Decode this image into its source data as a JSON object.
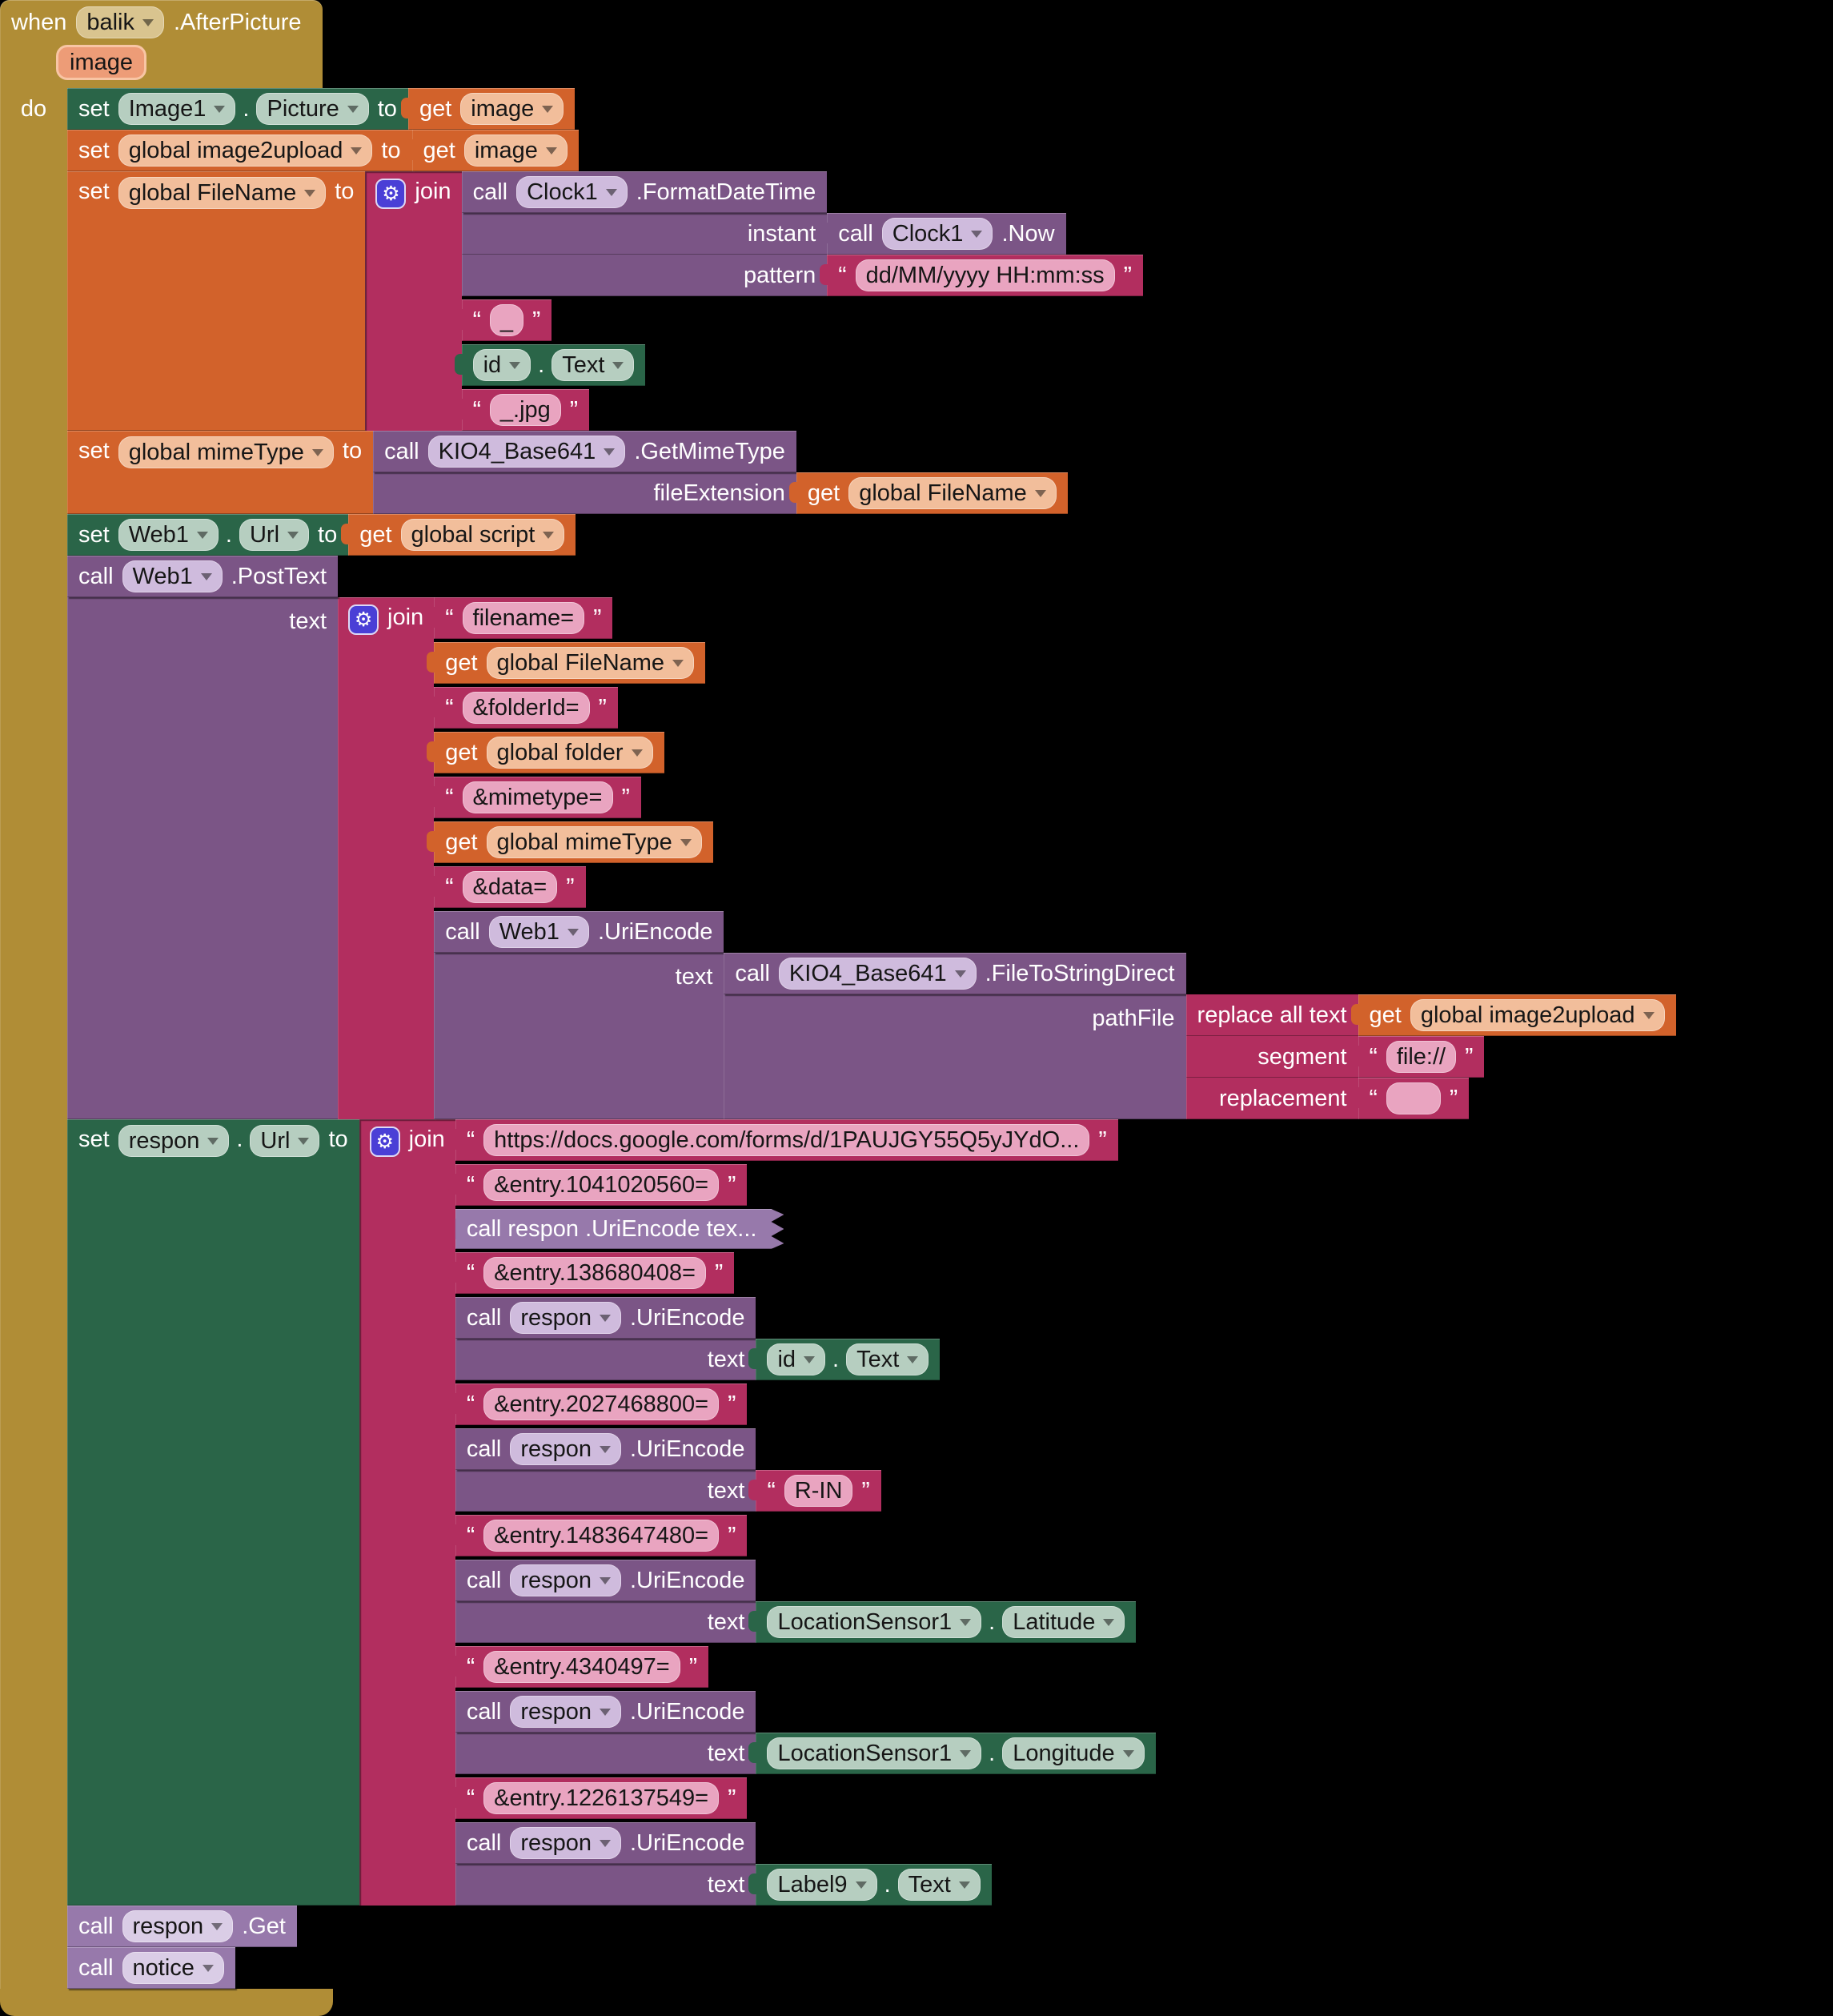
{
  "labels": {
    "when": "when",
    "do": "do",
    "set": "set",
    "get": "get",
    "call": "call",
    "to": "to",
    "join": "join",
    "dot": "."
  },
  "quotes": {
    "open": "“",
    "close": "”"
  },
  "event": {
    "component": "balik",
    "event_name": ".AfterPicture",
    "param": "image"
  },
  "vars": {
    "image": "image",
    "image2upload": "global image2upload",
    "file_name": "global FileName",
    "mime_type": "global mimeType",
    "script": "global script",
    "folder": "global folder"
  },
  "components": {
    "image1": "Image1",
    "picture_prop": "Picture",
    "clock1": "Clock1",
    "kio4": "KIO4_Base641",
    "web1": "Web1",
    "respon": "respon",
    "id": "id",
    "text_prop": "Text",
    "location_sensor1": "LocationSensor1",
    "latitude_prop": "Latitude",
    "longitude_prop": "Longitude",
    "label9": "Label9",
    "url_prop": "Url",
    "notice": "notice"
  },
  "methods": {
    "format_date_time": ".FormatDateTime",
    "now": ".Now",
    "get_mime_type": ".GetMimeType",
    "post_text": ".PostText",
    "uri_encode": ".UriEncode",
    "file_to_string_direct": ".FileToStringDirect",
    "get_method": ".Get"
  },
  "args": {
    "instant": "instant",
    "pattern": "pattern",
    "file_extension": "fileExtension",
    "text": "text",
    "path_file": "pathFile",
    "replace_all_text": "replace all text",
    "segment": "segment",
    "replacement": "replacement"
  },
  "strings": {
    "pattern": "dd/MM/yyyy HH:mm:ss",
    "underscore": "_",
    "jpg_suffix": "_.jpg",
    "filename_param": "filename=",
    "folder_id_param": "&folderId=",
    "mimetype_param": "&mimetype=",
    "data_param": "&data=",
    "file_scheme": "file://",
    "replacement_empty": "",
    "form_url": "https://docs.google.com/forms/d/1PAUJGY55Q5yJYdO...",
    "entry_1": "&entry.1041020560=",
    "entry_2": "&entry.138680408=",
    "entry_3": "&entry.2027468800=",
    "entry_4": "&entry.1483647480=",
    "entry_5": "&entry.4340497=",
    "entry_6": "&entry.1226137549=",
    "r_in": "R-IN"
  },
  "collapsed": {
    "uri_encode_text": "call  respon .UriEncode tex..."
  }
}
